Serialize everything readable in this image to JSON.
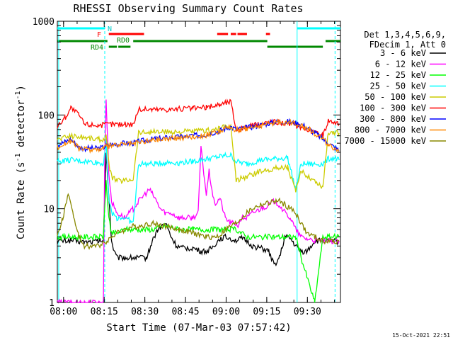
{
  "chart_data": {
    "type": "line",
    "title": "RHESSI Observing Summary Count Rates",
    "xlabel": "Start Time (07-Mar-03 07:57:42)",
    "ylabel": "Count Rate (s⁻¹ detector⁻¹)",
    "ylabel_parts": {
      "main": "Count Rate (s",
      "sup1": "-1",
      "mid": " detector",
      "sup2": "-1",
      "end": ")"
    },
    "y_scale": "log",
    "ylim": [
      1,
      1000
    ],
    "xlim_minutes": [
      0,
      104.5
    ],
    "x_tick_labels": [
      "08:00",
      "08:15",
      "08:30",
      "08:45",
      "09:00",
      "09:15",
      "09:30"
    ],
    "x_tick_minutes": [
      2.3,
      17.3,
      32.3,
      47.3,
      62.3,
      77.3,
      92.3
    ],
    "y_tick_labels": [
      "1",
      "10",
      "100",
      "1000"
    ],
    "y_tick_values": [
      1,
      10,
      100,
      1000
    ],
    "timestamp": "15-Oct-2021 22:51",
    "legend": {
      "placement": "right",
      "header": [
        "Det 1,3,4,5,6,9,",
        "FDecim 1, Att 0"
      ],
      "entries": [
        "3 - 6 keV",
        "6 - 12 keV",
        "12 - 25 keV",
        "25 - 50 keV",
        "50 - 100 keV",
        "100 - 300 keV",
        "300 - 800 keV",
        "800 - 7000 keV",
        "7000 - 15000 keV"
      ]
    },
    "flag_labels": [
      "N",
      "F",
      "RD0",
      "RD4"
    ],
    "flags": {
      "N": {
        "color": "#00ffff",
        "intervals": [
          [
            0,
            17.5
          ],
          [
            88.5,
            104.5
          ]
        ]
      },
      "F": {
        "color": "#ff0000",
        "intervals": [
          [
            19,
            32
          ],
          [
            59,
            63
          ],
          [
            64,
            66
          ],
          [
            66.5,
            70
          ],
          [
            77,
            78.5
          ]
        ]
      },
      "RD0": {
        "color": "#008800",
        "intervals": [
          [
            0,
            18.5
          ],
          [
            28,
            77.5
          ],
          [
            99,
            104.5
          ]
        ]
      },
      "RD4": {
        "color": "#008800",
        "intervals": [
          [
            19,
            22
          ],
          [
            22.5,
            27
          ],
          [
            77.5,
            98
          ]
        ]
      }
    },
    "vertical_markers": {
      "solid_cyan": [
        0.5,
        88.5
      ],
      "dashed_cyan": [
        17.5,
        102.5
      ]
    },
    "series": [
      {
        "name": "3 - 6 keV",
        "color": "#000000",
        "x": [
          0,
          5,
          10,
          15,
          17,
          18,
          19,
          20,
          21,
          22,
          25,
          28,
          30,
          33,
          35,
          37,
          40,
          42,
          44,
          46,
          48,
          50,
          53,
          55,
          57,
          60,
          62,
          64,
          66,
          68,
          70,
          72,
          75,
          78,
          80,
          82,
          84,
          86,
          88,
          90,
          92,
          95,
          98,
          100,
          102,
          104
        ],
        "y": [
          4.5,
          4.6,
          4.4,
          4.5,
          4.6,
          40,
          14,
          4.5,
          3.5,
          3,
          3,
          3,
          3,
          3,
          4.5,
          6,
          7,
          5,
          4,
          3.8,
          3.8,
          3.8,
          3.5,
          3.5,
          3.8,
          4.8,
          5,
          4.8,
          4.6,
          4.8,
          4.5,
          4,
          3.8,
          3.5,
          2.5,
          3,
          5,
          4.8,
          4,
          3.5,
          3.5,
          4.5,
          4.6,
          4.5,
          4.5,
          4.5
        ]
      },
      {
        "name": "6 - 12 keV",
        "color": "#ff00ff",
        "x": [
          0,
          5,
          10,
          15,
          17,
          17.5,
          18,
          19,
          20,
          22,
          25,
          28,
          30,
          32,
          34,
          36,
          38,
          40,
          42,
          45,
          48,
          50,
          52,
          53,
          55,
          56,
          58,
          60,
          62,
          64,
          66,
          67,
          68,
          70,
          72,
          75,
          78,
          80,
          82,
          84,
          86,
          88,
          90,
          92,
          95,
          98,
          100,
          102,
          104
        ],
        "y": [
          1,
          1,
          1,
          1,
          1,
          40,
          150,
          25,
          12,
          9,
          8,
          10,
          12,
          14,
          16,
          13,
          10,
          9,
          9,
          8,
          8,
          8,
          9,
          45,
          14,
          25,
          11,
          13,
          8,
          7,
          7,
          6.5,
          8,
          8,
          9,
          10,
          11,
          12,
          11,
          9,
          8,
          6,
          5,
          4.8,
          4.6,
          4.5,
          4.5,
          4.5,
          4.5
        ]
      },
      {
        "name": "12 - 25 keV",
        "color": "#00ff00",
        "x": [
          0,
          5,
          10,
          15,
          17,
          18,
          19,
          20,
          22,
          25,
          28,
          30,
          35,
          40,
          45,
          50,
          55,
          60,
          62,
          64,
          66,
          70,
          75,
          80,
          85,
          88,
          90,
          95,
          98,
          100,
          102,
          104
        ],
        "y": [
          5,
          5,
          5,
          5,
          5,
          20,
          8,
          5.5,
          5.5,
          6,
          6,
          6,
          6,
          6.5,
          6,
          6,
          6,
          6,
          6,
          6,
          6,
          5,
          5,
          5,
          5,
          5,
          3,
          1,
          5,
          5,
          5,
          5
        ]
      },
      {
        "name": "25 - 50 keV",
        "color": "#00ffff",
        "x": [
          0,
          5,
          10,
          15,
          17,
          18,
          19,
          20,
          22,
          25,
          28,
          30,
          35,
          40,
          45,
          50,
          55,
          60,
          62,
          64,
          66,
          70,
          75,
          80,
          85,
          88,
          90,
          95,
          98,
          100,
          102,
          104
        ],
        "y": [
          32,
          33,
          32,
          31,
          30,
          55,
          13,
          9,
          8,
          8,
          7,
          30,
          30,
          31,
          31,
          32,
          34,
          36,
          37,
          37,
          32,
          30,
          33,
          34,
          35,
          16,
          30,
          30,
          30,
          34,
          35,
          33
        ]
      },
      {
        "name": "50 - 100 keV",
        "color": "#cccc00",
        "x": [
          0,
          5,
          10,
          15,
          17,
          18,
          19,
          20,
          22,
          25,
          28,
          30,
          35,
          40,
          45,
          50,
          55,
          60,
          62,
          64,
          66,
          70,
          75,
          80,
          85,
          88,
          90,
          95,
          98,
          100,
          102,
          104
        ],
        "y": [
          55,
          60,
          58,
          55,
          55,
          60,
          30,
          22,
          20,
          20,
          21,
          65,
          66,
          66,
          66,
          67,
          68,
          72,
          74,
          75,
          20,
          22,
          25,
          27,
          28,
          15,
          25,
          20,
          17,
          65,
          66,
          64
        ]
      },
      {
        "name": "100 - 300 keV",
        "color": "#ff0000",
        "x": [
          0,
          3,
          5,
          8,
          10,
          15,
          17,
          18,
          20,
          22,
          25,
          28,
          30,
          35,
          40,
          45,
          50,
          55,
          60,
          62,
          64,
          66,
          68,
          70,
          72,
          75,
          78,
          80,
          82,
          84,
          86,
          88,
          90,
          92,
          95,
          98,
          100,
          102,
          104
        ],
        "y": [
          75,
          95,
          120,
          100,
          80,
          78,
          78,
          80,
          80,
          80,
          80,
          80,
          115,
          115,
          115,
          116,
          118,
          120,
          130,
          135,
          140,
          70,
          72,
          74,
          77,
          80,
          84,
          85,
          84,
          82,
          80,
          78,
          75,
          70,
          65,
          60,
          88,
          85,
          80
        ]
      },
      {
        "name": "300 - 800 keV",
        "color": "#0000ff",
        "x": [
          0,
          3,
          5,
          8,
          10,
          15,
          17,
          18,
          20,
          25,
          28,
          30,
          35,
          40,
          45,
          50,
          55,
          60,
          62,
          64,
          66,
          70,
          75,
          80,
          85,
          88,
          90,
          95,
          100,
          104
        ],
        "y": [
          48,
          52,
          55,
          45,
          44,
          44,
          45,
          47,
          48,
          50,
          50,
          52,
          55,
          57,
          58,
          60,
          62,
          68,
          72,
          75,
          70,
          73,
          78,
          84,
          85,
          82,
          80,
          65,
          50,
          42
        ]
      },
      {
        "name": "800 - 7000 keV",
        "color": "#ff8800",
        "x": [
          0,
          3,
          5,
          8,
          10,
          15,
          17,
          18,
          20,
          25,
          28,
          30,
          35,
          40,
          45,
          50,
          55,
          60,
          62,
          64,
          66,
          70,
          75,
          80,
          85,
          88,
          90,
          95,
          100,
          104
        ],
        "y": [
          45,
          50,
          53,
          44,
          43,
          43,
          44,
          46,
          47,
          49,
          49,
          51,
          54,
          56,
          57,
          59,
          61,
          67,
          71,
          74,
          69,
          72,
          77,
          83,
          84,
          81,
          79,
          64,
          49,
          41
        ]
      },
      {
        "name": "7000 - 15000 keV",
        "color": "#888800",
        "x": [
          0,
          2,
          4,
          5,
          6,
          8,
          10,
          12,
          15,
          18,
          20,
          22,
          25,
          28,
          30,
          35,
          40,
          45,
          50,
          55,
          58,
          60,
          62,
          64,
          66,
          68,
          70,
          72,
          75,
          78,
          80,
          82,
          84,
          86,
          88,
          90,
          92,
          95,
          98,
          100,
          102,
          104
        ],
        "y": [
          5,
          8,
          14,
          12,
          8,
          5,
          4,
          4,
          4,
          4.5,
          5,
          5.5,
          6,
          6.5,
          6.5,
          7,
          6.5,
          6,
          5.5,
          5,
          5,
          5.2,
          6,
          6.5,
          7,
          8,
          9,
          10,
          11,
          11.5,
          12,
          12,
          11,
          10,
          9,
          7,
          5.5,
          5,
          4.5,
          4.5,
          4.5,
          4.5
        ]
      }
    ]
  }
}
